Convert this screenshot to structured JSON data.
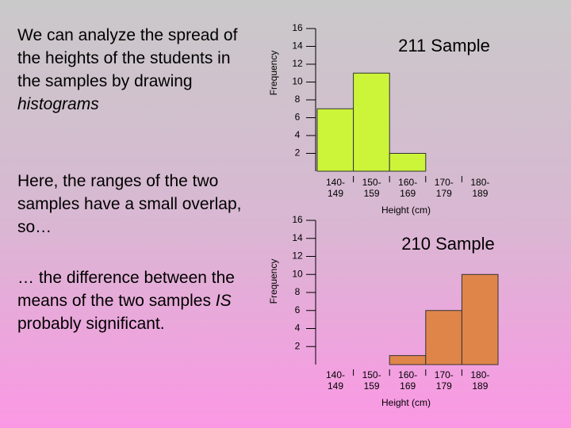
{
  "text": {
    "paragraphs": [
      {
        "parts": [
          {
            "text": "We can analyze the spread of the heights of the students in the samples by drawing "
          },
          {
            "text": "histograms",
            "italic": true
          }
        ]
      },
      {
        "parts": [
          {
            "text": "Here, the ranges of the two samples have a small overlap, so…"
          }
        ]
      },
      {
        "parts": [
          {
            "text": "… the difference between the means of the two samples "
          },
          {
            "text": "IS",
            "italic": true
          },
          {
            "text": " probably significant."
          }
        ]
      }
    ]
  },
  "chart_data": [
    {
      "type": "bar",
      "title": "211 Sample",
      "x_label": "Height (cm)",
      "y_label": "Frequency",
      "categories": [
        "140-\n149",
        "150-\n159",
        "160-\n169",
        "170-\n179",
        "180-\n189"
      ],
      "values": [
        7,
        11,
        2,
        0,
        0
      ],
      "color": "#ccf53a",
      "ylim": [
        0,
        16
      ],
      "yticks": [
        2,
        4,
        6,
        8,
        10,
        12,
        14,
        16
      ]
    },
    {
      "type": "bar",
      "title": "210 Sample",
      "x_label": "Height (cm)",
      "y_label": "Frequency",
      "categories": [
        "140-\n149",
        "150-\n159",
        "160-\n169",
        "170-\n179",
        "180-\n189"
      ],
      "values": [
        0,
        0,
        1,
        6,
        10
      ],
      "color": "#e0854a",
      "ylim": [
        0,
        16
      ],
      "yticks": [
        2,
        4,
        6,
        8,
        10,
        12,
        14,
        16
      ]
    }
  ]
}
